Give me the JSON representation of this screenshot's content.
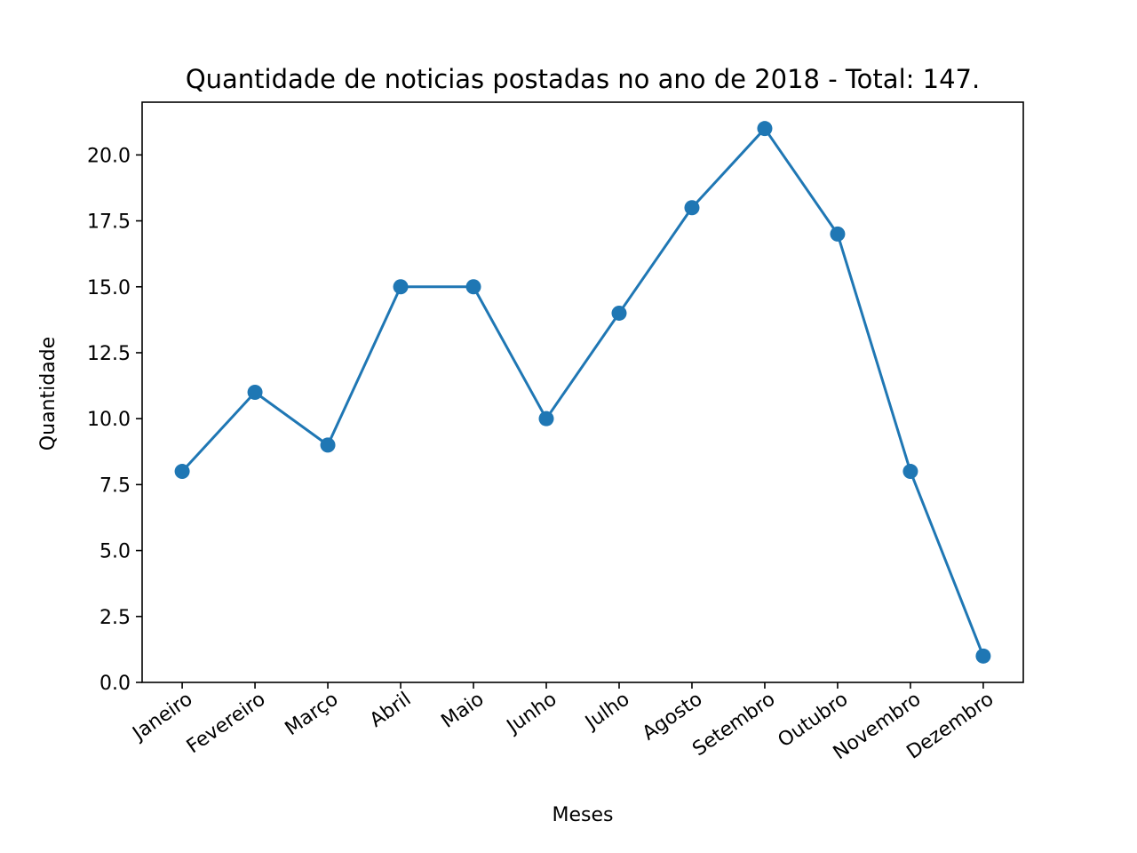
{
  "chart_data": {
    "type": "line",
    "title": "Quantidade de noticias postadas no ano de 2018 - Total: 147.",
    "xlabel": "Meses",
    "ylabel": "Quantidade",
    "categories": [
      "Janeiro",
      "Fevereiro",
      "Março",
      "Abril",
      "Maio",
      "Junho",
      "Julho",
      "Agosto",
      "Setembro",
      "Outubro",
      "Novembro",
      "Dezembro"
    ],
    "series": [
      {
        "values": [
          8,
          11,
          9,
          15,
          15,
          10,
          14,
          18,
          21,
          17,
          8,
          1
        ]
      }
    ],
    "ylim": [
      0,
      22
    ],
    "yticks": [
      "0.0",
      "2.5",
      "5.0",
      "7.5",
      "10.0",
      "12.5",
      "15.0",
      "17.5",
      "20.0"
    ],
    "grid": false,
    "markers": true,
    "line_color": "#1f77b4"
  }
}
